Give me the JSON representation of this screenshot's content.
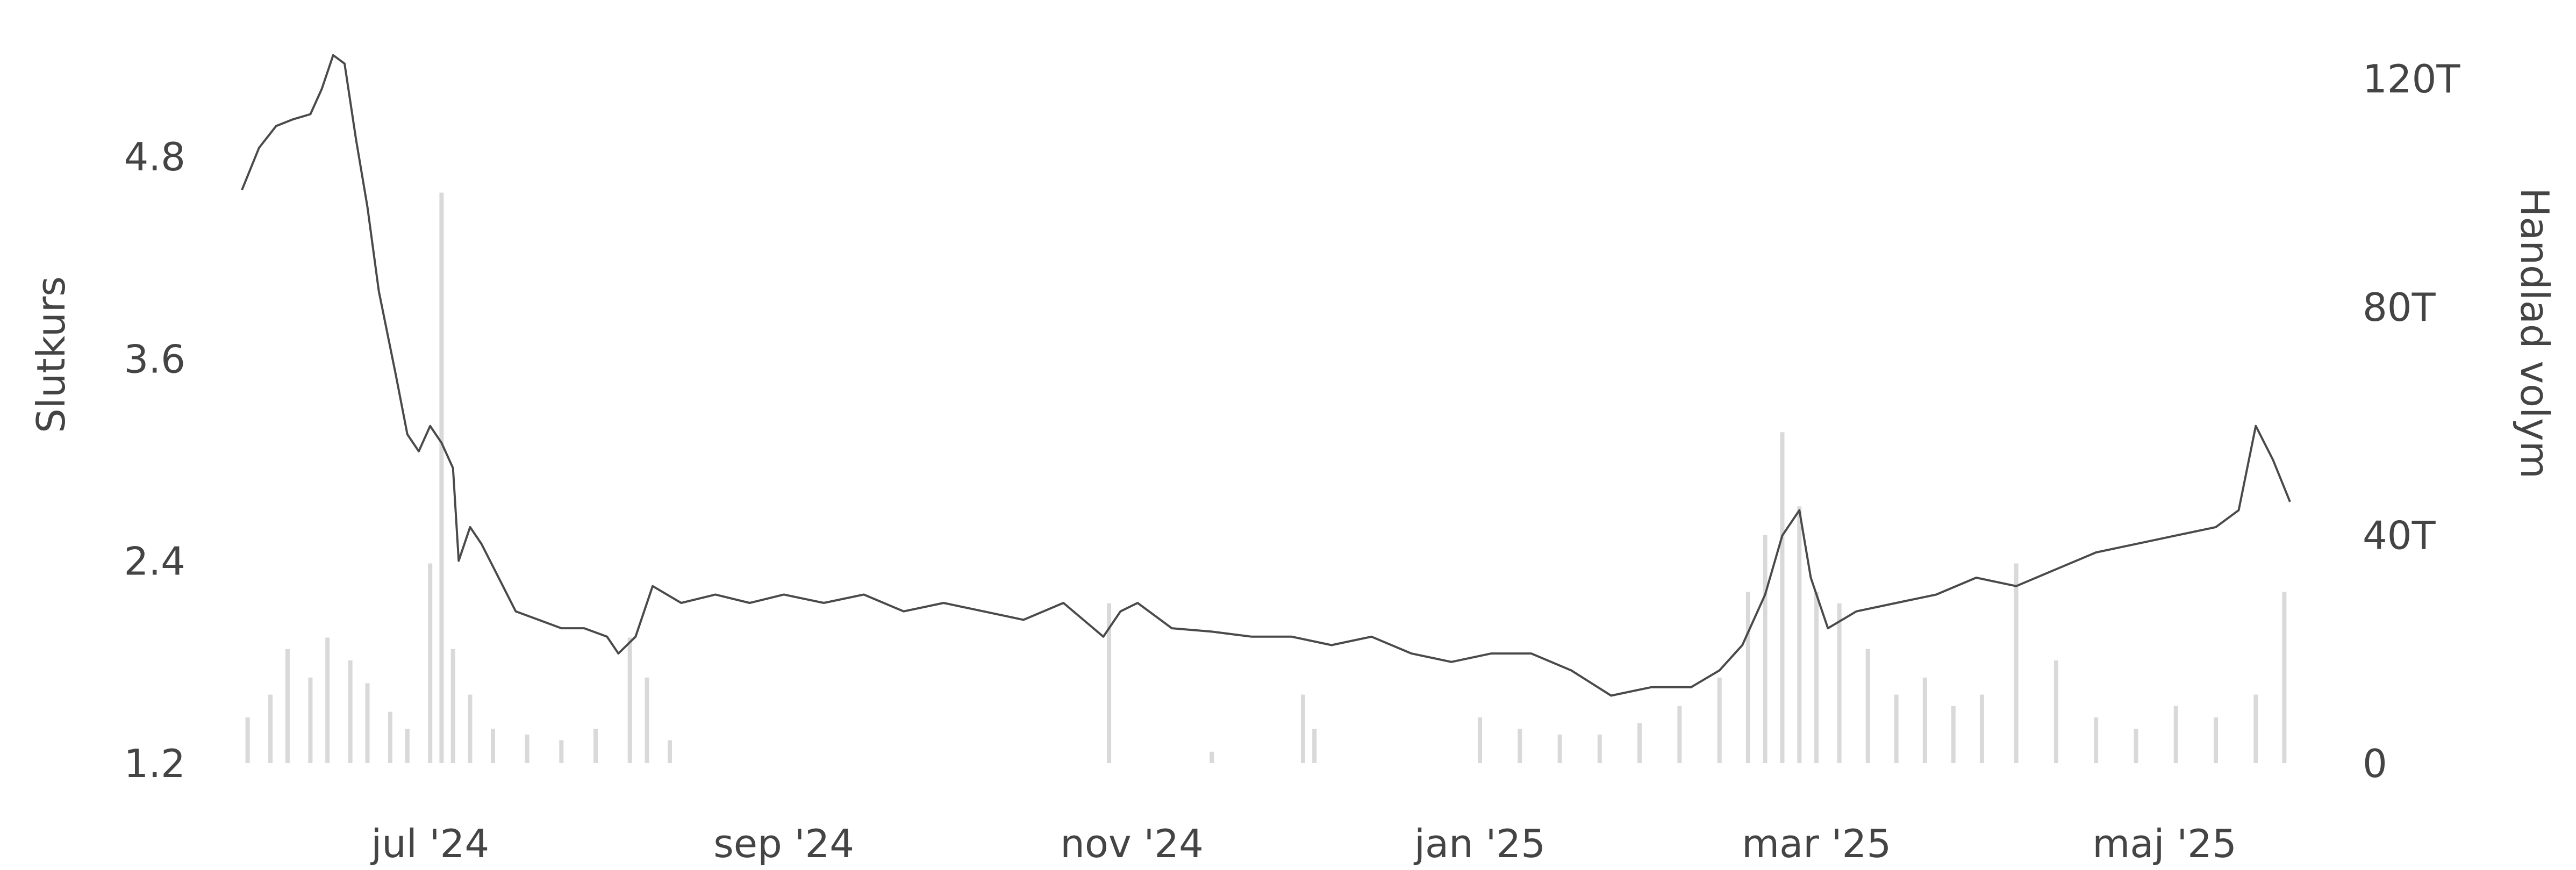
{
  "chart_data": {
    "type": "line",
    "ylabel": "Slutkurs",
    "y2label": "Handlad volym",
    "colors": {
      "price_line": "#4a4a4a",
      "volume_bars": "#d9d9d9"
    },
    "x_ticks": [
      "jul '24",
      "sep '24",
      "nov '24",
      "jan '25",
      "mar '25",
      "maj '25"
    ],
    "x_tick_dates": [
      "2024-07-01",
      "2024-09-01",
      "2024-11-01",
      "2025-01-01",
      "2025-03-01",
      "2025-05-01"
    ],
    "x_range": [
      "2024-05-29",
      "2025-05-23"
    ],
    "y_ticks": [
      "1.2",
      "2.4",
      "3.6",
      "4.8"
    ],
    "y_tick_values": [
      1.2,
      2.4,
      3.6,
      4.8
    ],
    "ylim": [
      1.2,
      5.6
    ],
    "y2_ticks": [
      "0",
      "40T",
      "80T",
      "120T"
    ],
    "y2_tick_values": [
      0,
      40000,
      80000,
      120000
    ],
    "y2lim": [
      0,
      130000
    ],
    "grid": false,
    "series": [
      {
        "role": "price",
        "points": [
          [
            "2024-05-29",
            4.6
          ],
          [
            "2024-06-01",
            4.85
          ],
          [
            "2024-06-04",
            4.98
          ],
          [
            "2024-06-07",
            5.02
          ],
          [
            "2024-06-10",
            5.05
          ],
          [
            "2024-06-12",
            5.2
          ],
          [
            "2024-06-14",
            5.4
          ],
          [
            "2024-06-16",
            5.35
          ],
          [
            "2024-06-18",
            4.9
          ],
          [
            "2024-06-20",
            4.5
          ],
          [
            "2024-06-22",
            4.0
          ],
          [
            "2024-06-25",
            3.5
          ],
          [
            "2024-06-27",
            3.15
          ],
          [
            "2024-06-29",
            3.05
          ],
          [
            "2024-07-01",
            3.2
          ],
          [
            "2024-07-03",
            3.1
          ],
          [
            "2024-07-05",
            2.95
          ],
          [
            "2024-07-06",
            2.4
          ],
          [
            "2024-07-08",
            2.6
          ],
          [
            "2024-07-10",
            2.5
          ],
          [
            "2024-07-13",
            2.3
          ],
          [
            "2024-07-16",
            2.1
          ],
          [
            "2024-07-20",
            2.05
          ],
          [
            "2024-07-24",
            2.0
          ],
          [
            "2024-07-28",
            2.0
          ],
          [
            "2024-08-01",
            1.95
          ],
          [
            "2024-08-03",
            1.85
          ],
          [
            "2024-08-06",
            1.95
          ],
          [
            "2024-08-09",
            2.25
          ],
          [
            "2024-08-14",
            2.15
          ],
          [
            "2024-08-20",
            2.2
          ],
          [
            "2024-08-26",
            2.15
          ],
          [
            "2024-09-01",
            2.2
          ],
          [
            "2024-09-08",
            2.15
          ],
          [
            "2024-09-15",
            2.2
          ],
          [
            "2024-09-22",
            2.1
          ],
          [
            "2024-09-29",
            2.15
          ],
          [
            "2024-10-06",
            2.1
          ],
          [
            "2024-10-13",
            2.05
          ],
          [
            "2024-10-20",
            2.15
          ],
          [
            "2024-10-27",
            1.95
          ],
          [
            "2024-10-30",
            2.1
          ],
          [
            "2024-11-02",
            2.15
          ],
          [
            "2024-11-08",
            2.0
          ],
          [
            "2024-11-15",
            1.98
          ],
          [
            "2024-11-22",
            1.95
          ],
          [
            "2024-11-29",
            1.95
          ],
          [
            "2024-12-06",
            1.9
          ],
          [
            "2024-12-13",
            1.95
          ],
          [
            "2024-12-20",
            1.85
          ],
          [
            "2024-12-27",
            1.8
          ],
          [
            "2025-01-03",
            1.85
          ],
          [
            "2025-01-10",
            1.85
          ],
          [
            "2025-01-17",
            1.75
          ],
          [
            "2025-01-24",
            1.6
          ],
          [
            "2025-01-31",
            1.65
          ],
          [
            "2025-02-07",
            1.65
          ],
          [
            "2025-02-12",
            1.75
          ],
          [
            "2025-02-16",
            1.9
          ],
          [
            "2025-02-20",
            2.2
          ],
          [
            "2025-02-23",
            2.55
          ],
          [
            "2025-02-26",
            2.7
          ],
          [
            "2025-02-28",
            2.3
          ],
          [
            "2025-03-03",
            2.0
          ],
          [
            "2025-03-08",
            2.1
          ],
          [
            "2025-03-15",
            2.15
          ],
          [
            "2025-03-22",
            2.2
          ],
          [
            "2025-03-29",
            2.3
          ],
          [
            "2025-04-05",
            2.25
          ],
          [
            "2025-04-12",
            2.35
          ],
          [
            "2025-04-19",
            2.45
          ],
          [
            "2025-04-26",
            2.5
          ],
          [
            "2025-05-03",
            2.55
          ],
          [
            "2025-05-10",
            2.6
          ],
          [
            "2025-05-14",
            2.7
          ],
          [
            "2025-05-17",
            3.2
          ],
          [
            "2025-05-20",
            3.0
          ],
          [
            "2025-05-23",
            2.75
          ]
        ]
      },
      {
        "role": "volume",
        "points": [
          [
            "2024-05-30",
            8000
          ],
          [
            "2024-06-03",
            12000
          ],
          [
            "2024-06-06",
            20000
          ],
          [
            "2024-06-10",
            15000
          ],
          [
            "2024-06-13",
            22000
          ],
          [
            "2024-06-17",
            18000
          ],
          [
            "2024-06-20",
            14000
          ],
          [
            "2024-06-24",
            9000
          ],
          [
            "2024-06-27",
            6000
          ],
          [
            "2024-07-01",
            35000
          ],
          [
            "2024-07-03",
            100000
          ],
          [
            "2024-07-05",
            20000
          ],
          [
            "2024-07-08",
            12000
          ],
          [
            "2024-07-12",
            6000
          ],
          [
            "2024-07-18",
            5000
          ],
          [
            "2024-07-24",
            4000
          ],
          [
            "2024-07-30",
            6000
          ],
          [
            "2024-08-05",
            22000
          ],
          [
            "2024-08-08",
            15000
          ],
          [
            "2024-08-12",
            4000
          ],
          [
            "2024-10-28",
            28000
          ],
          [
            "2024-11-15",
            2000
          ],
          [
            "2024-12-01",
            12000
          ],
          [
            "2024-12-03",
            6000
          ],
          [
            "2025-01-01",
            8000
          ],
          [
            "2025-01-08",
            6000
          ],
          [
            "2025-01-15",
            5000
          ],
          [
            "2025-01-22",
            5000
          ],
          [
            "2025-01-29",
            7000
          ],
          [
            "2025-02-05",
            10000
          ],
          [
            "2025-02-12",
            15000
          ],
          [
            "2025-02-17",
            30000
          ],
          [
            "2025-02-20",
            40000
          ],
          [
            "2025-02-23",
            58000
          ],
          [
            "2025-02-26",
            45000
          ],
          [
            "2025-03-01",
            30000
          ],
          [
            "2025-03-05",
            28000
          ],
          [
            "2025-03-10",
            20000
          ],
          [
            "2025-03-15",
            12000
          ],
          [
            "2025-03-20",
            15000
          ],
          [
            "2025-03-25",
            10000
          ],
          [
            "2025-03-30",
            12000
          ],
          [
            "2025-04-05",
            35000
          ],
          [
            "2025-04-12",
            18000
          ],
          [
            "2025-04-19",
            8000
          ],
          [
            "2025-04-26",
            6000
          ],
          [
            "2025-05-03",
            10000
          ],
          [
            "2025-05-10",
            8000
          ],
          [
            "2025-05-17",
            12000
          ],
          [
            "2025-05-22",
            30000
          ]
        ]
      }
    ]
  }
}
